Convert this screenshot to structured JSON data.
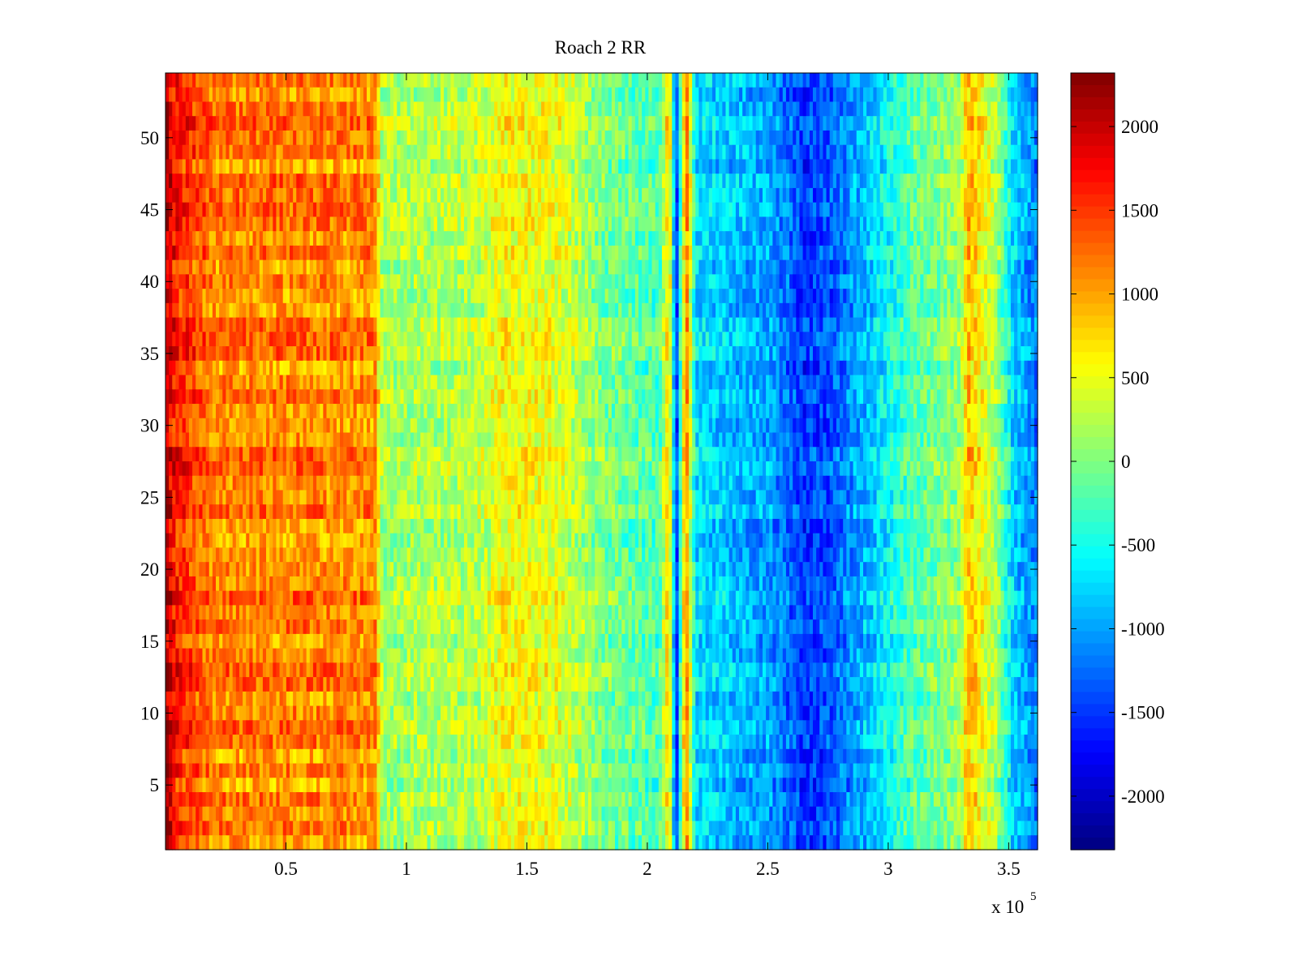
{
  "chart_data": {
    "type": "heatmap",
    "title": "Roach 2 RR",
    "xlabel": "",
    "ylabel": "",
    "x_multiplier_label": "x 10",
    "x_multiplier_exponent": "5",
    "xlim": [
      0,
      3.62
    ],
    "ylim": [
      0.5,
      54.5
    ],
    "x_ticks": [
      0.5,
      1,
      1.5,
      2,
      2.5,
      3,
      3.5
    ],
    "x_tick_labels": [
      "0.5",
      "1",
      "1.5",
      "2",
      "2.5",
      "3",
      "3.5"
    ],
    "y_ticks": [
      5,
      10,
      15,
      20,
      25,
      30,
      35,
      40,
      45,
      50
    ],
    "y_tick_labels": [
      "5",
      "10",
      "15",
      "20",
      "25",
      "30",
      "35",
      "40",
      "45",
      "50"
    ],
    "rows": 54,
    "colorbar": {
      "colormap": "jet",
      "clim": [
        -2320,
        2320
      ],
      "ticks": [
        2000,
        1500,
        1000,
        500,
        0,
        -500,
        -1000,
        -1500,
        -2000
      ],
      "tick_labels": [
        "2000",
        "1500",
        "1000",
        "500",
        "0",
        "-500",
        "-1000",
        "-1500",
        "-2000"
      ]
    },
    "column_profile": {
      "description_points_x": [
        0,
        0.03,
        0.2,
        0.87,
        0.9,
        1.3,
        1.4,
        1.6,
        1.8,
        2.05,
        2.09,
        2.12,
        2.14,
        2.16,
        2.2,
        2.5,
        2.65,
        2.75,
        2.9,
        3.1,
        3.3,
        3.33,
        3.45,
        3.52,
        3.62
      ],
      "description_points_value": [
        2150,
        1700,
        1150,
        1100,
        150,
        250,
        550,
        500,
        0,
        -250,
        900,
        -1700,
        -200,
        1300,
        -700,
        -1000,
        -1500,
        -1400,
        -900,
        -200,
        100,
        900,
        150,
        -800,
        -1200
      ]
    },
    "grid": false
  }
}
